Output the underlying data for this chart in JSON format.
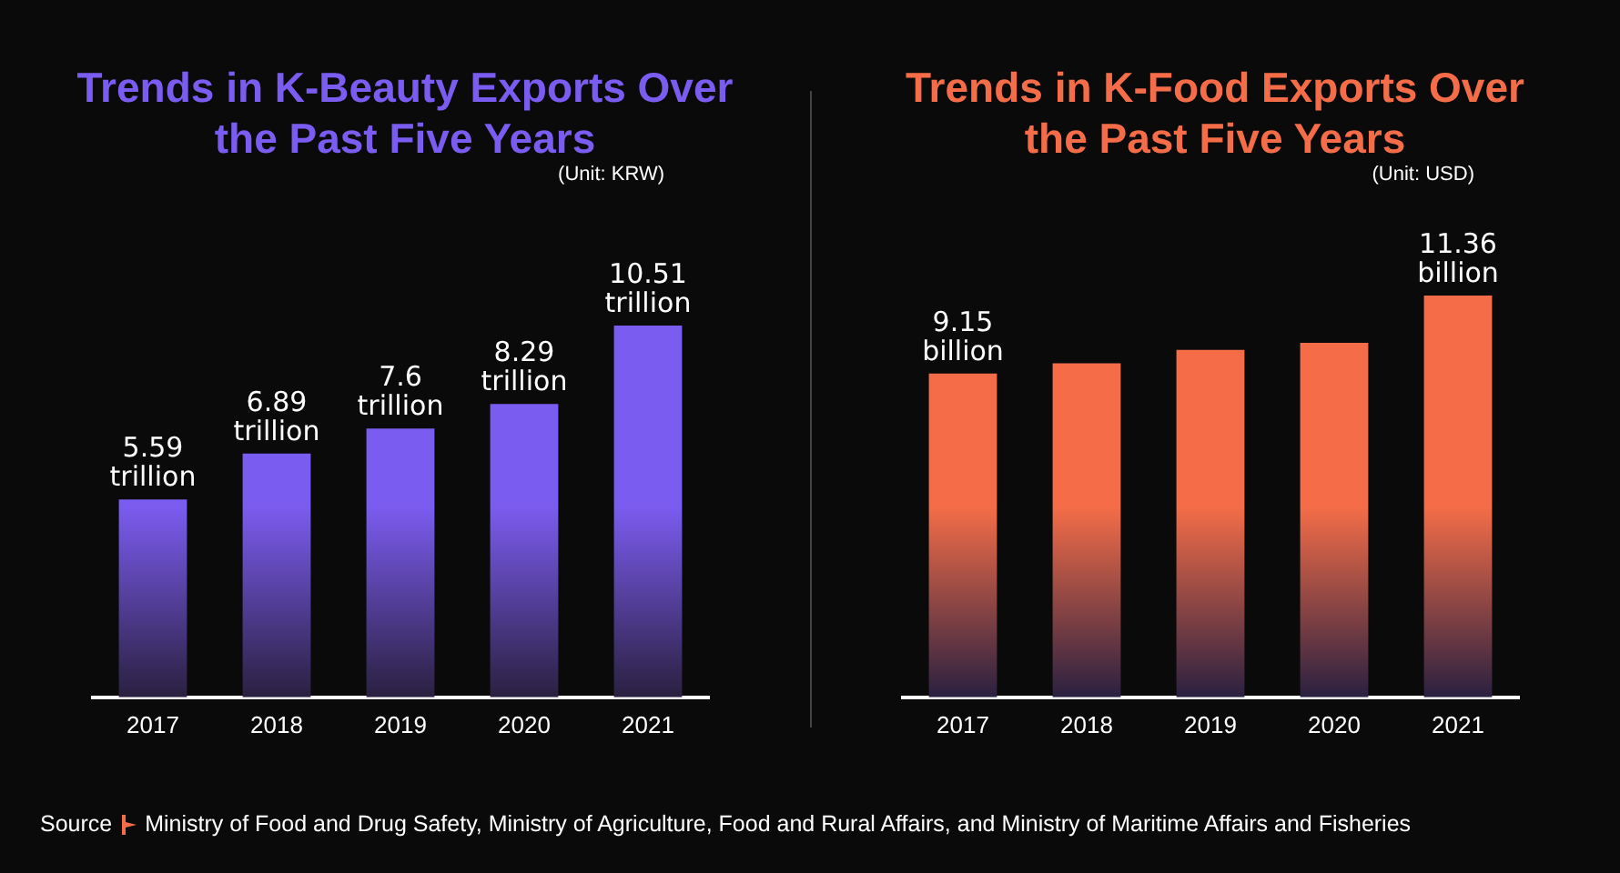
{
  "chart_data": [
    {
      "type": "bar",
      "title": "Trends in K-Beauty Exports Over the Past Five Years",
      "subtitle": "(Unit: KRW)",
      "categories": [
        "2017",
        "2018",
        "2019",
        "2020",
        "2021"
      ],
      "series": [
        {
          "color": "#7b5cf0",
          "values": [
            5.59,
            6.89,
            7.6,
            8.29,
            10.51
          ],
          "value_labels": [
            "5.59 trillion",
            "6.89 trillion",
            "7.6 trillion",
            "8.29 trillion",
            "10.51 trillion"
          ]
        }
      ],
      "tick_labels": "x",
      "grid": false,
      "legend": false
    },
    {
      "type": "bar",
      "title": "Trends in K-Food Exports Over the Past Five Years",
      "subtitle": "(Unit: USD)",
      "categories": [
        "2017",
        "2018",
        "2019",
        "2020",
        "2021"
      ],
      "series": [
        {
          "color": "#f46d48",
          "values": [
            9.15,
            9.44,
            9.82,
            10.02,
            11.36
          ],
          "value_labels": [
            "9.15 billion",
            null,
            null,
            null,
            "11.36 billion"
          ]
        }
      ],
      "tick_labels": "x",
      "grid": false,
      "legend": false,
      "annotations": [
        "Source",
        "Ministry of Food and Drug Safety, Ministry of Agriculture, Food and Rural Affairs, and Ministry of Maritime Affairs and Fisheries"
      ]
    }
  ]
}
